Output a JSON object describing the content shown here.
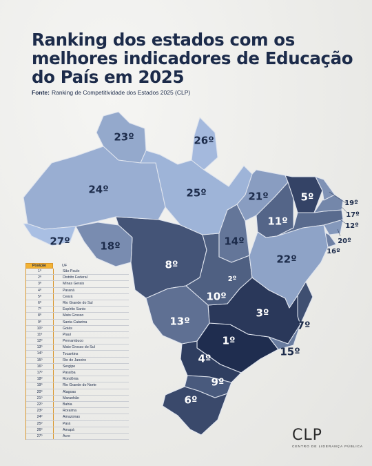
{
  "title": "Ranking dos estados com os melhores indicadores de Educação do País em 2025",
  "source": {
    "label": "Fonte:",
    "text": "Ranking de Competitividade dos Estados 2025 (CLP)"
  },
  "logo": {
    "mark": "CLP",
    "subtitle": "CENTRO DE LIDERANÇA PÚBLICA"
  },
  "legend": {
    "header_position": "Posição",
    "header_uf": "UF",
    "rows": [
      {
        "pos": "1º",
        "uf": "São Paulo"
      },
      {
        "pos": "2º",
        "uf": "Distrito Federal"
      },
      {
        "pos": "3º",
        "uf": "Minas Gerais"
      },
      {
        "pos": "4º",
        "uf": "Paraná"
      },
      {
        "pos": "5º",
        "uf": "Ceará"
      },
      {
        "pos": "6º",
        "uf": "Rio Grande do Sul"
      },
      {
        "pos": "7º",
        "uf": "Espírito Santo"
      },
      {
        "pos": "8º",
        "uf": "Mato Grosso"
      },
      {
        "pos": "9º",
        "uf": "Santa Catarina"
      },
      {
        "pos": "10º",
        "uf": "Goiás"
      },
      {
        "pos": "11º",
        "uf": "Piauí"
      },
      {
        "pos": "12º",
        "uf": "Pernambuco"
      },
      {
        "pos": "13º",
        "uf": "Mato Grosso do Sul"
      },
      {
        "pos": "14º",
        "uf": "Tocantins"
      },
      {
        "pos": "15º",
        "uf": "Rio de Janeiro"
      },
      {
        "pos": "16º",
        "uf": "Sergipe"
      },
      {
        "pos": "17º",
        "uf": "Paraíba"
      },
      {
        "pos": "18º",
        "uf": "Rondônia"
      },
      {
        "pos": "19º",
        "uf": "Rio Grande do Norte"
      },
      {
        "pos": "20º",
        "uf": "Alagoas"
      },
      {
        "pos": "21º",
        "uf": "Maranhão"
      },
      {
        "pos": "22º",
        "uf": "Bahia"
      },
      {
        "pos": "23º",
        "uf": "Roraima"
      },
      {
        "pos": "24º",
        "uf": "Amazonas"
      },
      {
        "pos": "25º",
        "uf": "Pará"
      },
      {
        "pos": "26º",
        "uf": "Amapá"
      },
      {
        "pos": "27º",
        "uf": "Acre"
      }
    ]
  },
  "map": {
    "states": [
      {
        "uf": "São Paulo",
        "rank": 1,
        "label": "1º"
      },
      {
        "uf": "Distrito Federal",
        "rank": 2,
        "label": "2º"
      },
      {
        "uf": "Minas Gerais",
        "rank": 3,
        "label": "3º"
      },
      {
        "uf": "Paraná",
        "rank": 4,
        "label": "4º"
      },
      {
        "uf": "Ceará",
        "rank": 5,
        "label": "5º"
      },
      {
        "uf": "Rio Grande do Sul",
        "rank": 6,
        "label": "6º"
      },
      {
        "uf": "Espírito Santo",
        "rank": 7,
        "label": "7º"
      },
      {
        "uf": "Mato Grosso",
        "rank": 8,
        "label": "8º"
      },
      {
        "uf": "Santa Catarina",
        "rank": 9,
        "label": "9º"
      },
      {
        "uf": "Goiás",
        "rank": 10,
        "label": "10º"
      },
      {
        "uf": "Piauí",
        "rank": 11,
        "label": "11º"
      },
      {
        "uf": "Pernambuco",
        "rank": 12,
        "label": "12º"
      },
      {
        "uf": "Mato Grosso do Sul",
        "rank": 13,
        "label": "13º"
      },
      {
        "uf": "Tocantins",
        "rank": 14,
        "label": "14º"
      },
      {
        "uf": "Rio de Janeiro",
        "rank": 15,
        "label": "15º"
      },
      {
        "uf": "Sergipe",
        "rank": 16,
        "label": "16º"
      },
      {
        "uf": "Paraíba",
        "rank": 17,
        "label": "17º"
      },
      {
        "uf": "Rondônia",
        "rank": 18,
        "label": "18º"
      },
      {
        "uf": "Rio Grande do Norte",
        "rank": 19,
        "label": "19º"
      },
      {
        "uf": "Alagoas",
        "rank": 20,
        "label": "20º"
      },
      {
        "uf": "Maranhão",
        "rank": 21,
        "label": "21º"
      },
      {
        "uf": "Bahia",
        "rank": 22,
        "label": "22º"
      },
      {
        "uf": "Roraima",
        "rank": 23,
        "label": "23º"
      },
      {
        "uf": "Amazonas",
        "rank": 24,
        "label": "24º"
      },
      {
        "uf": "Pará",
        "rank": 25,
        "label": "25º"
      },
      {
        "uf": "Amapá",
        "rank": 26,
        "label": "26º"
      },
      {
        "uf": "Acre",
        "rank": 27,
        "label": "27º"
      }
    ],
    "color_scale": {
      "best": "#1f2d4f",
      "worst": "#a9bfe3"
    }
  }
}
